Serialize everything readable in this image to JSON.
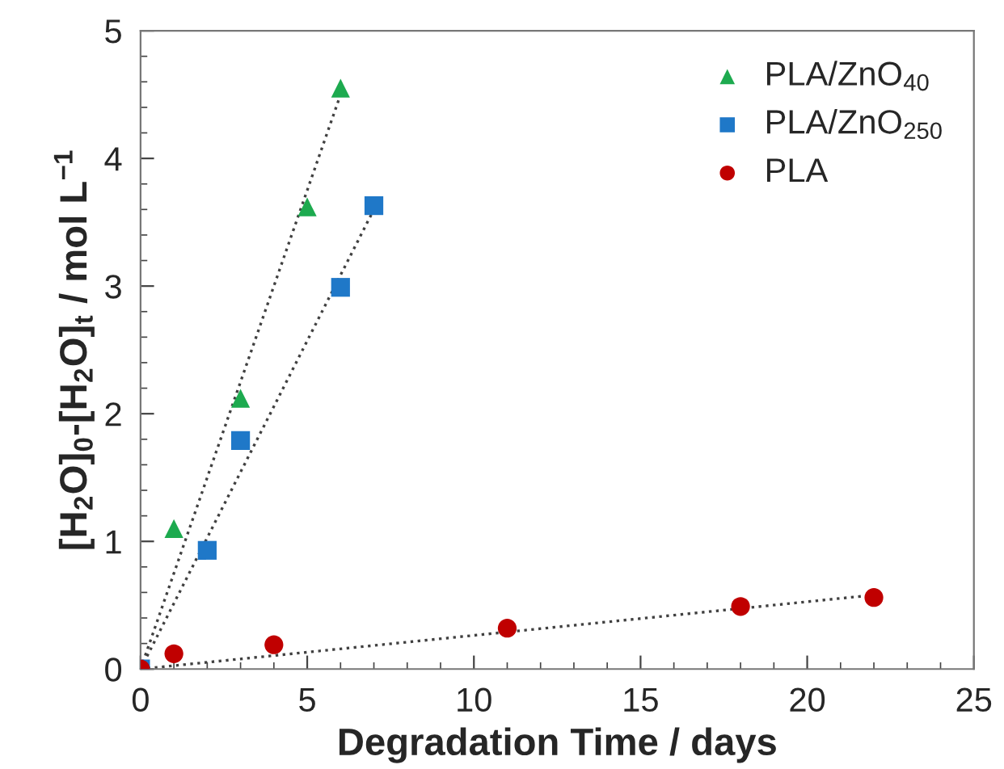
{
  "chart_data": {
    "type": "scatter",
    "xlabel": "Degradation Time / days",
    "ylabel": "[H$_{2}$O]$_{0}$-[H$_{2}$O]$_{t}$ / mol L$^{−1}$",
    "xlim": [
      0,
      25
    ],
    "ylim": [
      0,
      5
    ],
    "xticks": [
      0,
      5,
      10,
      15,
      20,
      25
    ],
    "yticks": [
      0,
      1,
      2,
      3,
      4,
      5
    ],
    "grid": false,
    "legend": "top right",
    "series": [
      {
        "name": "PLA/ZnO$_{40}$",
        "color": "#1daa4f",
        "marker": "triangle",
        "x": [
          1,
          3,
          5,
          6
        ],
        "values": [
          1.1,
          2.12,
          3.62,
          4.55
        ]
      },
      {
        "name": "PLA/ZnO$_{250}$",
        "color": "#1f78c8",
        "marker": "square",
        "x": [
          0,
          2,
          3,
          6,
          7
        ],
        "values": [
          0,
          0.93,
          1.79,
          2.99,
          3.63
        ]
      },
      {
        "name": "PLA",
        "color": "#c00000",
        "marker": "circle",
        "x": [
          0,
          1,
          4,
          11,
          18,
          22
        ],
        "values": [
          0,
          0.12,
          0.19,
          0.32,
          0.49,
          0.56
        ]
      },
      {
        "type": "line",
        "color": "#404040",
        "line_style": "dotted",
        "marker": "none",
        "x": [
          0,
          6
        ],
        "values": [
          0,
          4.5
        ]
      },
      {
        "type": "line",
        "color": "#404040",
        "line_style": "dotted",
        "marker": "none",
        "x": [
          0,
          7
        ],
        "values": [
          0,
          3.6
        ]
      },
      {
        "type": "line",
        "color": "#404040",
        "line_style": "dotted",
        "marker": "none",
        "x": [
          0,
          22
        ],
        "values": [
          0,
          0.58
        ]
      }
    ]
  }
}
